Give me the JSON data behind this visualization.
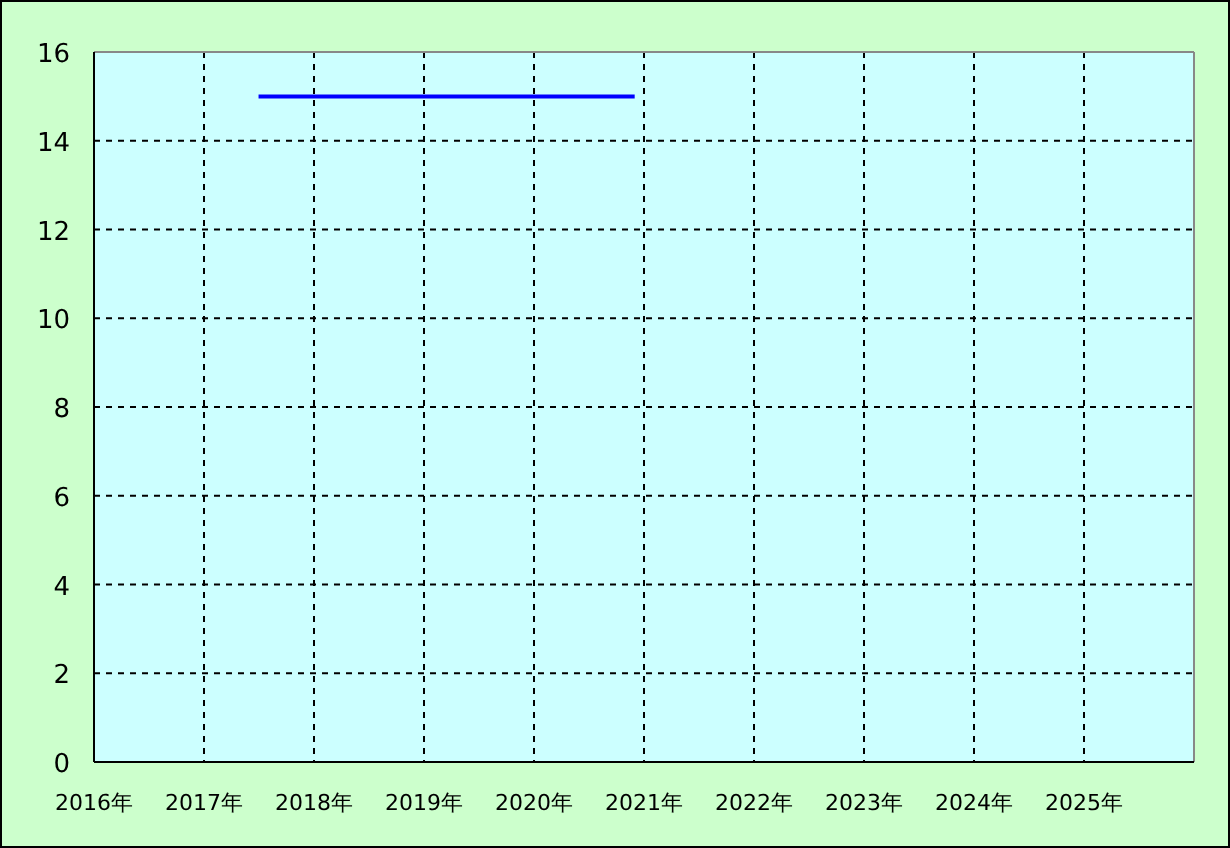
{
  "chart_data": {
    "type": "line",
    "x": [
      "2017-07",
      "2020-12"
    ],
    "series": [
      {
        "color": "#0000ff",
        "values": [
          15,
          15
        ]
      }
    ],
    "xlim": [
      "2016",
      "2026"
    ],
    "xticks": [
      {
        "value": "2016",
        "label": "2016年"
      },
      {
        "value": "2017",
        "label": "2017年"
      },
      {
        "value": "2018",
        "label": "2018年"
      },
      {
        "value": "2019",
        "label": "2019年"
      },
      {
        "value": "2020",
        "label": "2020年"
      },
      {
        "value": "2021",
        "label": "2021年"
      },
      {
        "value": "2022",
        "label": "2022年"
      },
      {
        "value": "2023",
        "label": "2023年"
      },
      {
        "value": "2024",
        "label": "2024年"
      },
      {
        "value": "2025",
        "label": "2025年"
      }
    ],
    "ylim": [
      0,
      16
    ],
    "yticks": [
      0,
      2,
      4,
      6,
      8,
      10,
      12,
      14,
      16
    ],
    "grid": true
  }
}
